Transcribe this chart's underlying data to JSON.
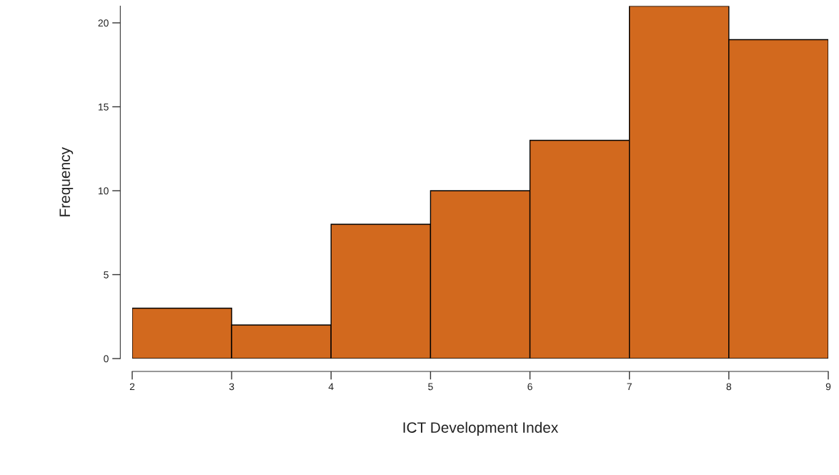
{
  "chart_data": {
    "type": "histogram",
    "xlabel": "ICT Development Index",
    "ylabel": "Frequency",
    "bins": [
      2,
      3,
      4,
      5,
      6,
      7,
      8,
      9
    ],
    "values": [
      3,
      2,
      8,
      10,
      13,
      21,
      19
    ],
    "color": "#d2691e",
    "xlim": [
      2,
      9
    ],
    "xticks": [
      2,
      3,
      4,
      5,
      6,
      7,
      8,
      9
    ],
    "ylim": [
      0,
      21
    ],
    "yticks": [
      0,
      5,
      10,
      15,
      20
    ],
    "grid": false
  }
}
